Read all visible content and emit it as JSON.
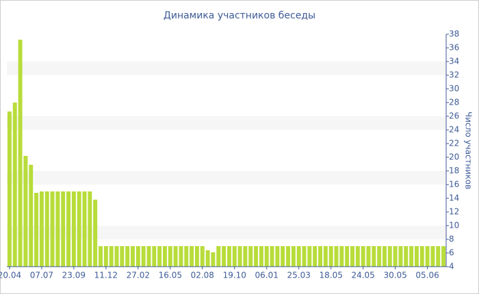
{
  "chart_data": {
    "type": "bar",
    "title": "Динамика участников беседы",
    "y_axis_label": "Число участников",
    "categories": [
      "20.04",
      null,
      null,
      null,
      null,
      null,
      "07.07",
      null,
      null,
      null,
      null,
      null,
      "23.09",
      null,
      null,
      null,
      null,
      null,
      "11.12",
      null,
      null,
      null,
      null,
      null,
      "27.02",
      null,
      null,
      null,
      null,
      null,
      "16.05",
      null,
      null,
      null,
      null,
      null,
      "02.08",
      null,
      null,
      null,
      null,
      null,
      "19.10",
      null,
      null,
      null,
      null,
      null,
      "06.01",
      null,
      null,
      null,
      null,
      null,
      "25.03",
      null,
      null,
      null,
      null,
      null,
      "18.05",
      null,
      null,
      null,
      null,
      null,
      "24.05",
      null,
      null,
      null,
      null,
      null,
      "30.05",
      null,
      null,
      null,
      null,
      null,
      "05.06",
      null,
      null,
      null
    ],
    "values": [
      26.7,
      28,
      37.2,
      20.2,
      18.9,
      14.8,
      15,
      15,
      15,
      15,
      15,
      15,
      15,
      15,
      15,
      15,
      13.8,
      7,
      7,
      7,
      7,
      7,
      7,
      7,
      7,
      7,
      7,
      7,
      7,
      7,
      7,
      7,
      7,
      7,
      7,
      7,
      7,
      6.4,
      6.1,
      7,
      7,
      7,
      7,
      7,
      7,
      7,
      7,
      7,
      7,
      7,
      7,
      7,
      7,
      7,
      7,
      7,
      7,
      7,
      7,
      7,
      7,
      7,
      7,
      7,
      7,
      7,
      7,
      7,
      7,
      7,
      7,
      7,
      7,
      7,
      7,
      7,
      7,
      7,
      7,
      7,
      7,
      7
    ],
    "color": "#b8dc3a",
    "ylim": [
      4,
      38
    ],
    "yticks": [
      4,
      6,
      8,
      10,
      12,
      14,
      16,
      18,
      20,
      22,
      24,
      26,
      28,
      30,
      32,
      34,
      36,
      38
    ],
    "grid": true
  }
}
